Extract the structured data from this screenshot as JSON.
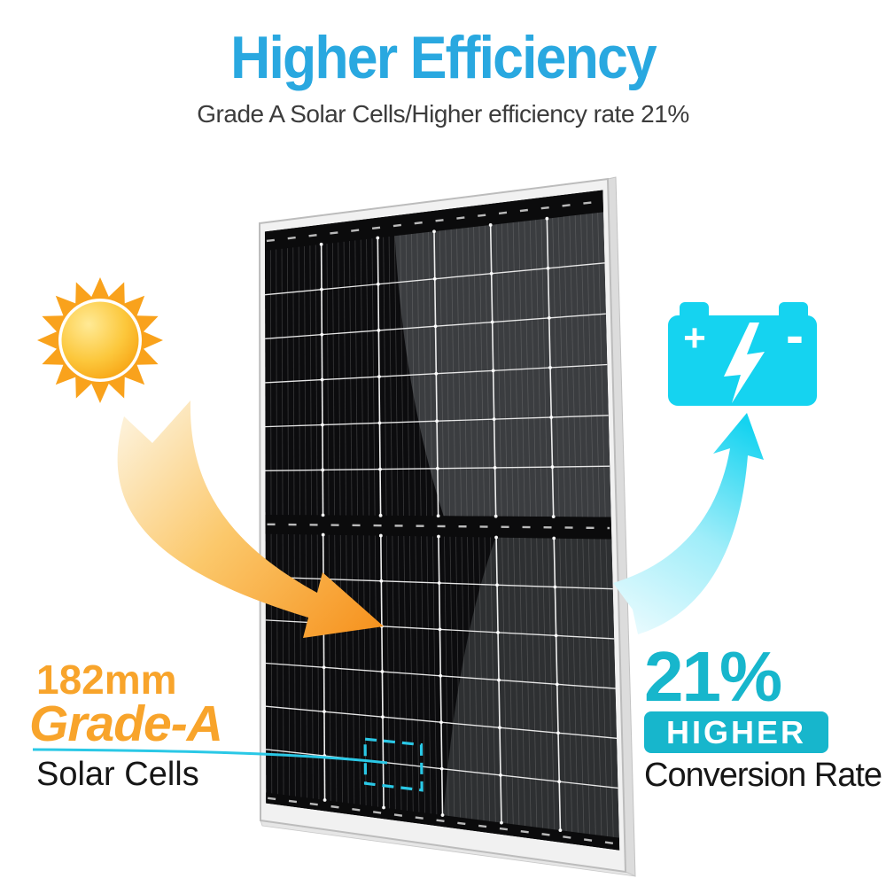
{
  "header": {
    "title": "Higher Efficiency",
    "subtitle": "Grade A Solar Cells/Higher efficiency rate 21%"
  },
  "left_feature": {
    "size_label": "182mm",
    "grade_label": "Grade-A",
    "caption": "Solar Cells"
  },
  "right_feature": {
    "percent_label": "21%",
    "badge_label": "HIGHER",
    "caption": "Conversion Rate"
  },
  "battery": {
    "plus_label": "+",
    "minus_label": "-"
  },
  "colors": {
    "title_blue": "#29A8E0",
    "subtitle_gray": "#3C3C3C",
    "accent_orange": "#F8A42B",
    "arrow_orange_deep": "#F6921E",
    "arrow_orange_pale": "#FDF0D5",
    "battery_cyan": "#15D3F0",
    "teal": "#17B6CC",
    "highlight_cyan": "#2AC8E6",
    "text_dark": "#161616",
    "panel_dark": "#0C0C0E",
    "panel_reflection": "#3B3D40",
    "frame_silver": "#F1F1F1",
    "sun_ray_orange": "#F9A21C"
  }
}
